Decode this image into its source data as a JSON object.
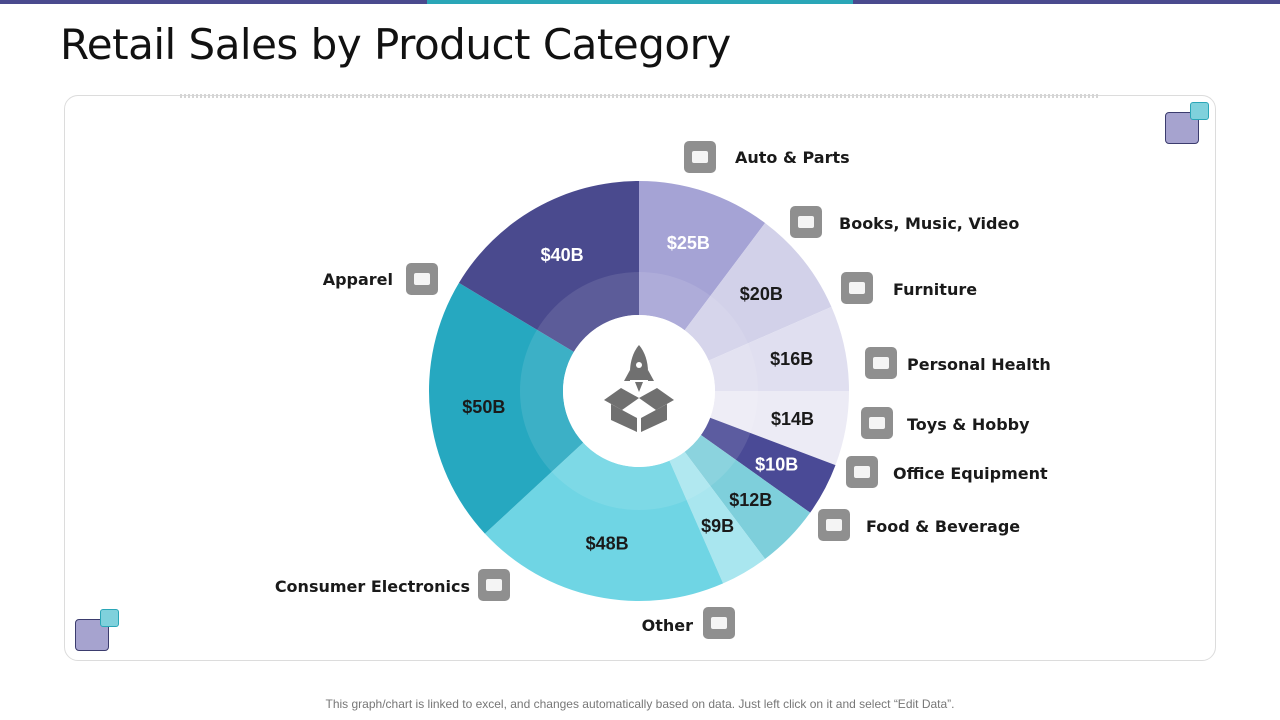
{
  "title": "Retail Sales by Product Category",
  "footnote": "This graph/chart is linked to excel, and changes automatically based on data. Just left click on it and select “Edit Data”.",
  "colors": {
    "top_bar": [
      "#4a4a8e",
      "#2aa6b7",
      "#4a4a8e"
    ],
    "deco_purple": "#a6a3cf",
    "deco_teal": "#7fd1dc",
    "icon_bg": "#8f8f8f"
  },
  "chart_data": {
    "type": "pie",
    "style": "donut",
    "center_icon": "rocket-box-icon",
    "title": "Retail Sales by Product Category",
    "unit": "$B",
    "slices": [
      {
        "label": "Auto & Parts",
        "value": 25,
        "display": "$25B",
        "color": "#a5a3d5",
        "text_color": "#ffffff",
        "icon": "car-icon"
      },
      {
        "label": "Books, Music, Video",
        "value": 20,
        "display": "$20B",
        "color": "#d2d1e9",
        "text_color": "#1a1a1a",
        "icon": "media-icon"
      },
      {
        "label": "Furniture",
        "value": 16,
        "display": "$16B",
        "color": "#e0dff0",
        "text_color": "#1a1a1a",
        "icon": "furniture-icon"
      },
      {
        "label": "Personal Health",
        "value": 14,
        "display": "$14B",
        "color": "#ecebf5",
        "text_color": "#1a1a1a",
        "icon": "heart-icon"
      },
      {
        "label": "Toys & Hobby",
        "value": 10,
        "display": "$10B",
        "color": "#4a4a96",
        "text_color": "#ffffff",
        "icon": "toy-icon"
      },
      {
        "label": "Office Equipment",
        "value": 12,
        "display": "$12B",
        "color": "#7ecfdb",
        "text_color": "#1a1a1a",
        "icon": "printer-icon"
      },
      {
        "label": "Food & Beverage",
        "value": 9,
        "display": "$9B",
        "color": "#a9e6ef",
        "text_color": "#1a1a1a",
        "icon": "food-icon"
      },
      {
        "label": "Other",
        "value": 48,
        "display": "$48B",
        "color": "#6fd5e4",
        "text_color": "#1a1a1a",
        "icon": "gift-icon"
      },
      {
        "label": "Consumer Electronics",
        "value": 50,
        "display": "$50B",
        "color": "#26a8c0",
        "text_color": "#1a1a1a",
        "icon": "monitor-icon"
      },
      {
        "label": "Apparel",
        "value": 40,
        "display": "$40B",
        "color": "#4a4a8e",
        "text_color": "#ffffff",
        "icon": "shirt-icon"
      }
    ]
  }
}
